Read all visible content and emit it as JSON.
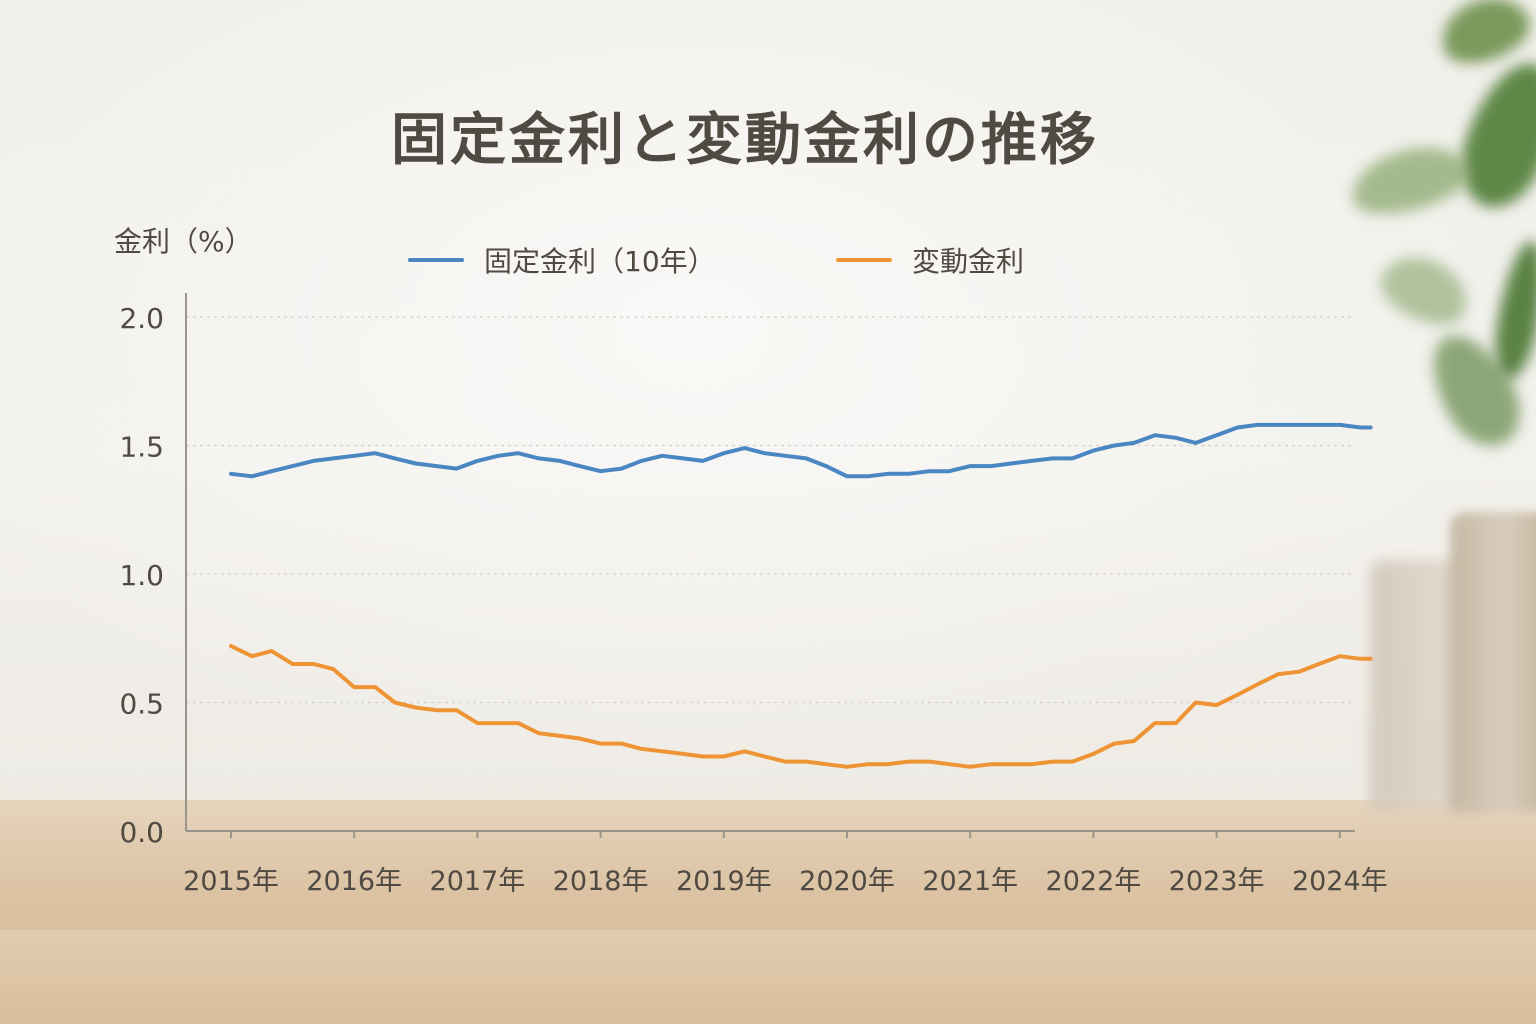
{
  "chart_data": {
    "type": "line",
    "title": "固定金利と変動金利の推移",
    "ylabel": "金利（%）",
    "xlabel": "",
    "ylim": [
      0,
      2.0
    ],
    "yticks": [
      "0.0",
      "0.5",
      "1.0",
      "1.5",
      "2.0"
    ],
    "xtick_labels": [
      "2015年",
      "2016年",
      "2017年",
      "2018年",
      "2019年",
      "2020年",
      "2021年",
      "2022年",
      "2023年",
      "2024年"
    ],
    "grid": true,
    "legend_position": "top",
    "x": [
      2015.0,
      2015.17,
      2015.33,
      2015.5,
      2015.67,
      2015.83,
      2016.0,
      2016.17,
      2016.33,
      2016.5,
      2016.67,
      2016.83,
      2017.0,
      2017.17,
      2017.33,
      2017.5,
      2017.67,
      2017.83,
      2018.0,
      2018.17,
      2018.33,
      2018.5,
      2018.67,
      2018.83,
      2019.0,
      2019.17,
      2019.33,
      2019.5,
      2019.67,
      2019.83,
      2020.0,
      2020.17,
      2020.33,
      2020.5,
      2020.67,
      2020.83,
      2021.0,
      2021.17,
      2021.33,
      2021.5,
      2021.67,
      2021.83,
      2022.0,
      2022.17,
      2022.33,
      2022.5,
      2022.67,
      2022.83,
      2023.0,
      2023.17,
      2023.33,
      2023.5,
      2023.67,
      2023.83,
      2024.0,
      2024.17,
      2024.25
    ],
    "series": [
      {
        "name": "固定金利（10年）",
        "color": "#4a86c2",
        "values": [
          1.39,
          1.38,
          1.4,
          1.42,
          1.44,
          1.45,
          1.46,
          1.47,
          1.45,
          1.43,
          1.42,
          1.41,
          1.44,
          1.46,
          1.47,
          1.45,
          1.44,
          1.42,
          1.4,
          1.41,
          1.44,
          1.46,
          1.45,
          1.44,
          1.47,
          1.49,
          1.47,
          1.46,
          1.45,
          1.42,
          1.38,
          1.38,
          1.39,
          1.39,
          1.4,
          1.4,
          1.42,
          1.42,
          1.43,
          1.44,
          1.45,
          1.45,
          1.48,
          1.5,
          1.51,
          1.54,
          1.53,
          1.51,
          1.54,
          1.57,
          1.58,
          1.58,
          1.58,
          1.58,
          1.58,
          1.57,
          1.57
        ]
      },
      {
        "name": "変動金利",
        "color": "#ef9434",
        "values": [
          0.72,
          0.68,
          0.7,
          0.65,
          0.65,
          0.63,
          0.56,
          0.56,
          0.5,
          0.48,
          0.47,
          0.47,
          0.42,
          0.42,
          0.42,
          0.38,
          0.37,
          0.36,
          0.34,
          0.34,
          0.32,
          0.31,
          0.3,
          0.29,
          0.29,
          0.31,
          0.29,
          0.27,
          0.27,
          0.26,
          0.25,
          0.26,
          0.26,
          0.27,
          0.27,
          0.26,
          0.25,
          0.26,
          0.26,
          0.26,
          0.27,
          0.27,
          0.3,
          0.34,
          0.35,
          0.42,
          0.42,
          0.5,
          0.49,
          0.53,
          0.57,
          0.61,
          0.62,
          0.65,
          0.68,
          0.67,
          0.67
        ]
      }
    ]
  }
}
